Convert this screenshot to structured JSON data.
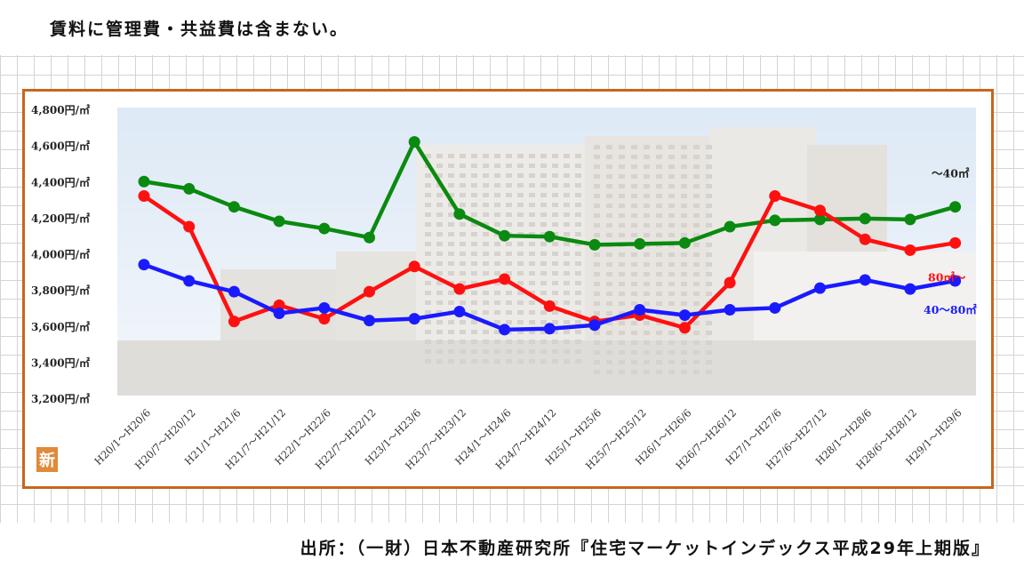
{
  "page": {
    "note": "賃料に管理費・共益費は含まない。",
    "source": "出所：（一財）日本不動産研究所『住宅マーケットインデックス平成29年上期版』",
    "new_badge": "新"
  },
  "colors": {
    "frame": "#c8661c",
    "series_green": "#0a8a10",
    "series_red": "#ff1010",
    "series_blue": "#1a1aff",
    "badge": "#e08a3a"
  },
  "chart_data": {
    "type": "line",
    "ylim": [
      3200,
      4800
    ],
    "yticks": [
      "3,200円/㎡",
      "3,400円/㎡",
      "3,600円/㎡",
      "3,800円/㎡",
      "4,000円/㎡",
      "4,200円/㎡",
      "4,400円/㎡",
      "4,600円/㎡",
      "4,800円/㎡"
    ],
    "ytick_values": [
      3200,
      3400,
      3600,
      3800,
      4000,
      4200,
      4400,
      4600,
      4800
    ],
    "categories": [
      "H20/1～H20/6",
      "H20/7～H20/12",
      "H21/1～H21/6",
      "H21/7～H21/12",
      "H22/1～H22/6",
      "H22/7～H22/12",
      "H23/1～H23/6",
      "H23/7～H23/12",
      "H24/1～H24/6",
      "H24/7～H24/12",
      "H25/1～H25/6",
      "H25/7～H25/12",
      "H26/1～H26/6",
      "H26/7～H26/12",
      "H27/1～H27/6",
      "H27/6～H27/12",
      "H28/1～H28/6",
      "H28/6～H28/12",
      "H29/1～H29/6"
    ],
    "series": [
      {
        "name": "～40㎡",
        "color": "#0a8a10",
        "values": [
          4400,
          4360,
          4260,
          4180,
          4140,
          4090,
          4620,
          4220,
          4100,
          4095,
          4050,
          4055,
          4060,
          4150,
          4185,
          4190,
          4195,
          4190,
          4260
        ]
      },
      {
        "name": "80㎡～",
        "color": "#ff1010",
        "values": [
          4320,
          4150,
          3625,
          3715,
          3640,
          3790,
          3930,
          3805,
          3860,
          3710,
          3625,
          3660,
          3590,
          3840,
          4320,
          4240,
          4080,
          4020,
          4060
        ]
      },
      {
        "name": "40～80㎡",
        "color": "#1a1aff",
        "values": [
          3940,
          3850,
          3790,
          3670,
          3700,
          3630,
          3640,
          3680,
          3580,
          3585,
          3605,
          3690,
          3660,
          3690,
          3700,
          3810,
          3855,
          3805,
          3850
        ]
      }
    ],
    "grid": false,
    "legend": "labels at right end of lines"
  }
}
